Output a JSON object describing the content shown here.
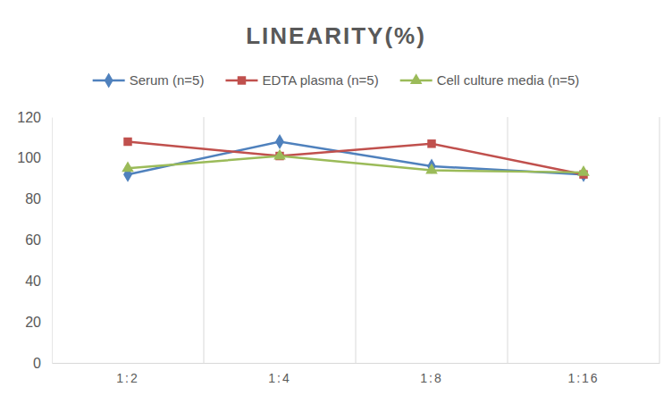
{
  "chart_data": {
    "type": "line",
    "title": "LINEARITY(%)",
    "categories": [
      "1:2",
      "1:4",
      "1:8",
      "1:16"
    ],
    "series": [
      {
        "name": "Serum (n=5)",
        "color": "#4f81bd",
        "marker": "diamond",
        "values": [
          92,
          108,
          96,
          92
        ]
      },
      {
        "name": "EDTA plasma (n=5)",
        "color": "#c0504d",
        "marker": "square",
        "values": [
          108,
          101,
          107,
          92
        ]
      },
      {
        "name": "Cell culture media (n=5)",
        "color": "#9bbb59",
        "marker": "triangle",
        "values": [
          95,
          101,
          94,
          93
        ]
      }
    ],
    "ylim": [
      0,
      120
    ],
    "yticks": [
      0,
      20,
      40,
      60,
      80,
      100,
      120
    ],
    "grid": true,
    "legend": "top"
  }
}
